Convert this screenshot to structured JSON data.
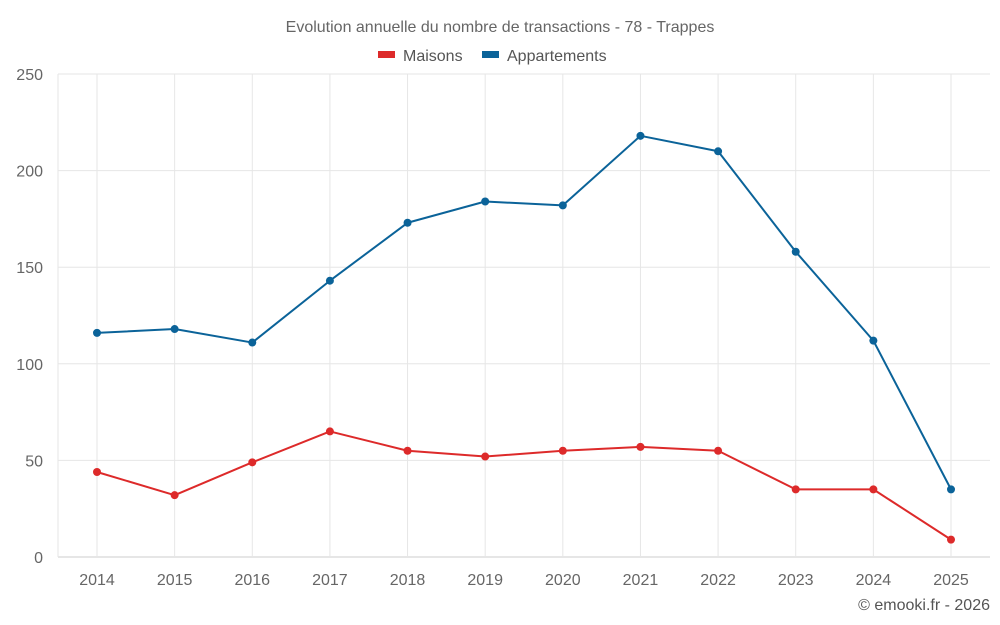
{
  "chart_data": {
    "type": "line",
    "title": "Evolution annuelle du nombre de transactions - 78 - Trappes",
    "xlabel": "",
    "ylabel": "",
    "x": [
      "2014",
      "2015",
      "2016",
      "2017",
      "2018",
      "2019",
      "2020",
      "2021",
      "2022",
      "2023",
      "2024",
      "2025"
    ],
    "yticks": [
      0,
      50,
      100,
      150,
      200,
      250
    ],
    "ylim": [
      0,
      250
    ],
    "grid": true,
    "legend_position": "top-center",
    "series": [
      {
        "name": "Maisons",
        "color": "#dd2a2a",
        "values": [
          44,
          32,
          49,
          65,
          55,
          52,
          55,
          57,
          55,
          35,
          35,
          9
        ]
      },
      {
        "name": "Appartements",
        "color": "#0b6399",
        "values": [
          116,
          118,
          111,
          143,
          173,
          184,
          182,
          218,
          210,
          158,
          112,
          35
        ]
      }
    ],
    "credit": "© emooki.fr - 2026"
  }
}
